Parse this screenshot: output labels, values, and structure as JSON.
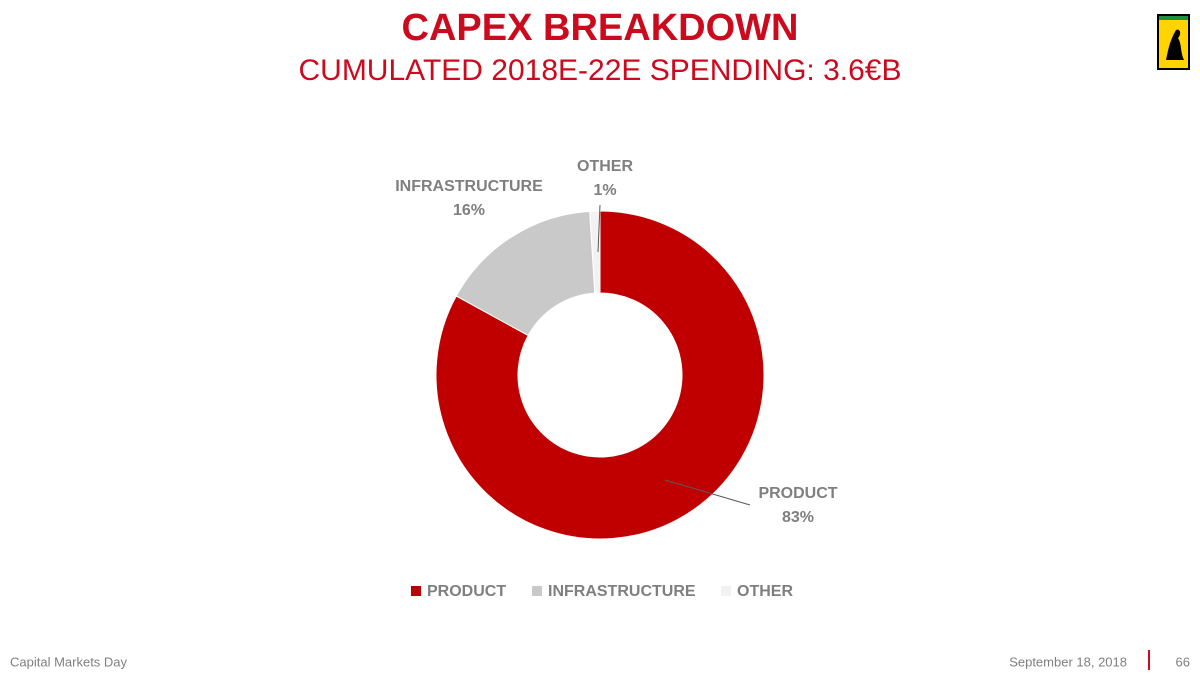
{
  "chart_data": {
    "type": "pie",
    "donut": true,
    "title": "CAPEX BREAKDOWN",
    "subtitle": "CUMULATED 2018E-22E SPENDING: 3.6€B",
    "categories": [
      "PRODUCT",
      "INFRASTRUCTURE",
      "OTHER"
    ],
    "values": [
      83,
      16,
      1
    ],
    "value_labels": [
      "83%",
      "16%",
      "1%"
    ],
    "colors": [
      "#c00000",
      "#c9c9c9",
      "#f2f2f2"
    ],
    "legend": "bottom"
  },
  "footer": {
    "left": "Capital Markets Day",
    "date": "September 18, 2018",
    "page": "66"
  }
}
